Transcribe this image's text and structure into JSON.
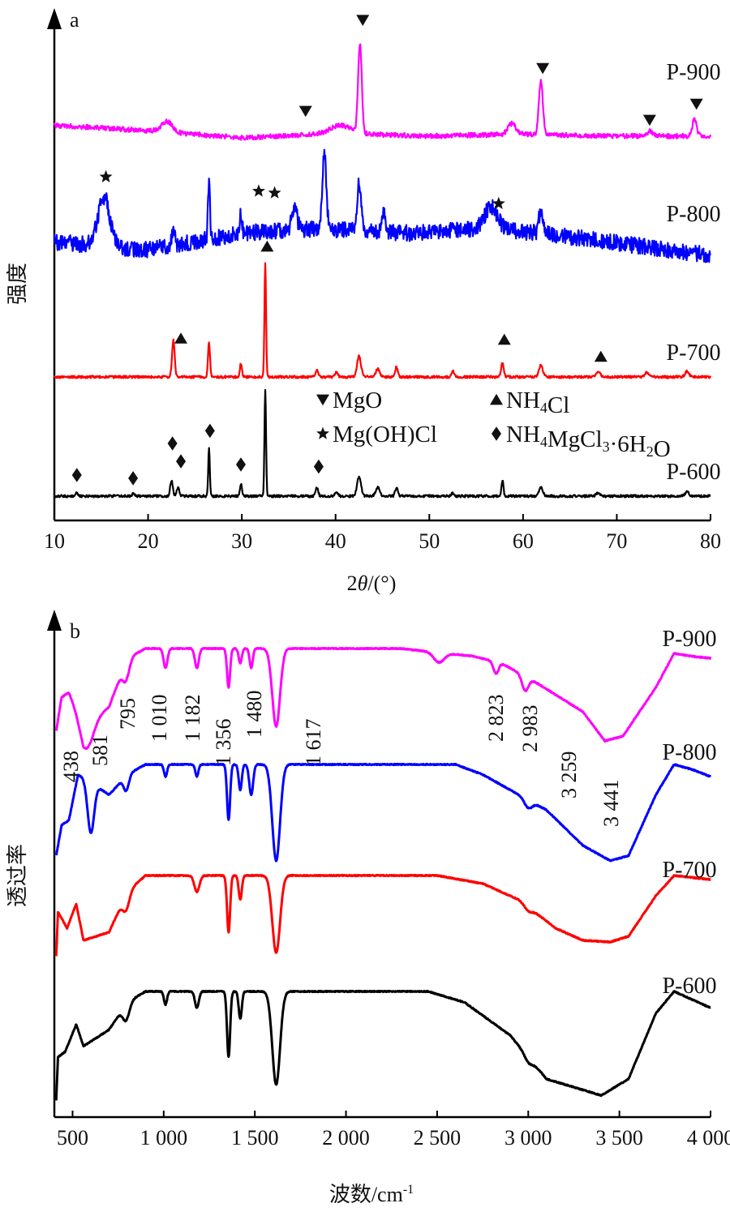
{
  "chart_data": [
    {
      "panel_label": "a",
      "type": "line",
      "xlabel_parts": [
        "2",
        "θ",
        "/(°)"
      ],
      "ylabel": "强度",
      "xlim": [
        10,
        80
      ],
      "xticks": [
        10,
        20,
        30,
        40,
        50,
        60,
        70,
        80
      ],
      "legend": [
        {
          "symbol": "down-triangle",
          "text": "MgO"
        },
        {
          "symbol": "up-triangle",
          "text": "NH4Cl",
          "parts": [
            "NH",
            "4",
            "Cl"
          ]
        },
        {
          "symbol": "star",
          "text": "Mg(OH)Cl"
        },
        {
          "symbol": "diamond",
          "text": "NH4MgCl3·6H2O",
          "parts": [
            "NH",
            "4",
            "MgCl",
            "3",
            "·6H",
            "2",
            "O"
          ]
        }
      ],
      "series": [
        {
          "name": "P-900",
          "color": "#ff00ff",
          "noise": 3,
          "baseline": [
            [
              10,
              0.14
            ],
            [
              20,
              0.08
            ],
            [
              30,
              0.0
            ],
            [
              40,
              0.05
            ],
            [
              50,
              0.02
            ],
            [
              60,
              0.04
            ],
            [
              70,
              0.02
            ],
            [
              80,
              0.02
            ]
          ],
          "peaks": [
            [
              22.0,
              0.12,
              0.8
            ],
            [
              40.5,
              0.09,
              1.5
            ],
            [
              42.6,
              1.0,
              0.28
            ],
            [
              58.8,
              0.12,
              0.6
            ],
            [
              61.9,
              0.6,
              0.3
            ],
            [
              73.5,
              0.05,
              0.4
            ],
            [
              78.3,
              0.2,
              0.3
            ]
          ],
          "markers": [
            {
              "x": 36.8,
              "y": 0.3,
              "symbol": "down-triangle"
            },
            {
              "x": 42.9,
              "y": 1.32,
              "symbol": "down-triangle"
            },
            {
              "x": 62.1,
              "y": 0.78,
              "symbol": "down-triangle"
            },
            {
              "x": 73.5,
              "y": 0.2,
              "symbol": "down-triangle"
            },
            {
              "x": 78.5,
              "y": 0.38,
              "symbol": "down-triangle"
            }
          ]
        },
        {
          "name": "P-800",
          "color": "#0000ff",
          "noise": 10,
          "baseline": [
            [
              10,
              0.15
            ],
            [
              20,
              0.06
            ],
            [
              30,
              0.25
            ],
            [
              38,
              0.3
            ],
            [
              48,
              0.25
            ],
            [
              55,
              0.3
            ],
            [
              62,
              0.25
            ],
            [
              80,
              0.0
            ]
          ],
          "peaks": [
            [
              15.3,
              0.55,
              0.9
            ],
            [
              22.7,
              0.2,
              0.2
            ],
            [
              26.5,
              0.65,
              0.15
            ],
            [
              29.9,
              0.25,
              0.15
            ],
            [
              35.6,
              0.25,
              0.4
            ],
            [
              38.8,
              0.85,
              0.3
            ],
            [
              42.5,
              0.55,
              0.3
            ],
            [
              45.1,
              0.2,
              0.3
            ],
            [
              56.6,
              0.25,
              1.0
            ],
            [
              61.9,
              0.25,
              0.3
            ]
          ],
          "markers": [
            {
              "x": 15.5,
              "y": 0.88,
              "symbol": "star"
            },
            {
              "x": 31.8,
              "y": 0.72,
              "symbol": "star"
            },
            {
              "x": 33.5,
              "y": 0.7,
              "symbol": "star"
            },
            {
              "x": 57.4,
              "y": 0.58,
              "symbol": "star"
            }
          ]
        },
        {
          "name": "P-700",
          "color": "#ff0000",
          "noise": 1.5,
          "baseline": [
            [
              10,
              0.0
            ],
            [
              80,
              0.0
            ]
          ],
          "peaks": [
            [
              22.7,
              0.32,
              0.2
            ],
            [
              26.5,
              0.3,
              0.15
            ],
            [
              29.9,
              0.12,
              0.15
            ],
            [
              32.5,
              1.0,
              0.12
            ],
            [
              38.0,
              0.06,
              0.2
            ],
            [
              40.1,
              0.05,
              0.2
            ],
            [
              42.5,
              0.18,
              0.3
            ],
            [
              44.5,
              0.07,
              0.3
            ],
            [
              46.5,
              0.09,
              0.2
            ],
            [
              52.5,
              0.05,
              0.2
            ],
            [
              57.8,
              0.12,
              0.2
            ],
            [
              61.9,
              0.1,
              0.3
            ],
            [
              68.0,
              0.05,
              0.3
            ],
            [
              73.2,
              0.04,
              0.3
            ],
            [
              77.5,
              0.05,
              0.3
            ]
          ],
          "markers": [
            {
              "x": 23.5,
              "y": 0.34,
              "symbol": "up-triangle"
            },
            {
              "x": 32.7,
              "y": 1.15,
              "symbol": "up-triangle"
            },
            {
              "x": 58.0,
              "y": 0.33,
              "symbol": "up-triangle"
            },
            {
              "x": 68.3,
              "y": 0.18,
              "symbol": "up-triangle"
            }
          ]
        },
        {
          "name": "P-600",
          "color": "#000000",
          "noise": 1.5,
          "baseline": [
            [
              10,
              0.0
            ],
            [
              80,
              0.0
            ]
          ],
          "peaks": [
            [
              12.4,
              0.03,
              0.2
            ],
            [
              18.4,
              0.02,
              0.2
            ],
            [
              22.5,
              0.15,
              0.2
            ],
            [
              23.2,
              0.08,
              0.2
            ],
            [
              26.5,
              0.45,
              0.12
            ],
            [
              29.9,
              0.12,
              0.15
            ],
            [
              32.5,
              1.0,
              0.12
            ],
            [
              38.0,
              0.08,
              0.2
            ],
            [
              40.1,
              0.04,
              0.2
            ],
            [
              42.5,
              0.18,
              0.3
            ],
            [
              44.5,
              0.08,
              0.3
            ],
            [
              46.5,
              0.08,
              0.2
            ],
            [
              52.5,
              0.03,
              0.2
            ],
            [
              57.8,
              0.15,
              0.15
            ],
            [
              61.9,
              0.08,
              0.3
            ],
            [
              68.0,
              0.03,
              0.3
            ],
            [
              77.5,
              0.04,
              0.3
            ]
          ],
          "markers": [
            {
              "x": 12.4,
              "y": 0.2,
              "symbol": "diamond"
            },
            {
              "x": 18.4,
              "y": 0.17,
              "symbol": "diamond"
            },
            {
              "x": 22.6,
              "y": 0.5,
              "symbol": "diamond"
            },
            {
              "x": 23.5,
              "y": 0.33,
              "symbol": "diamond"
            },
            {
              "x": 26.6,
              "y": 0.62,
              "symbol": "diamond"
            },
            {
              "x": 29.9,
              "y": 0.3,
              "symbol": "diamond"
            },
            {
              "x": 38.2,
              "y": 0.28,
              "symbol": "diamond"
            }
          ]
        }
      ]
    },
    {
      "panel_label": "b",
      "type": "line",
      "xlabel": "波数/cm",
      "xlabel_sup": "-1",
      "ylabel": "透过率",
      "xlim": [
        400,
        4000
      ],
      "xticks": [
        500,
        1000,
        1500,
        2000,
        2500,
        3000,
        3500,
        4000
      ],
      "xtick_labels": [
        "500",
        "1 000",
        "1 500",
        "2 000",
        "2 500",
        "3 000",
        "3 500",
        "4 000"
      ],
      "band_labels": [
        {
          "value": 438,
          "text": "438"
        },
        {
          "value": 581,
          "text": "581"
        },
        {
          "value": 795,
          "text": "795"
        },
        {
          "value": 1010,
          "text": "1 010"
        },
        {
          "value": 1182,
          "text": "1 182"
        },
        {
          "value": 1356,
          "text": "1 356"
        },
        {
          "value": 1480,
          "text": "1 480"
        },
        {
          "value": 1617,
          "text": "1 617"
        },
        {
          "value": 2823,
          "text": "2 823"
        },
        {
          "value": 2983,
          "text": "2 983"
        },
        {
          "value": 3259,
          "text": "3 259"
        },
        {
          "value": 3441,
          "text": "3 441"
        }
      ],
      "series": [
        {
          "name": "P-900",
          "color": "#ff00ff",
          "baseline": [
            [
              410,
              0.15
            ],
            [
              440,
              0.5
            ],
            [
              480,
              0.55
            ],
            [
              560,
              0.2
            ],
            [
              700,
              0.4
            ],
            [
              800,
              0.9
            ],
            [
              900,
              1.0
            ],
            [
              2300,
              1.0
            ],
            [
              2700,
              0.92
            ],
            [
              2850,
              0.85
            ],
            [
              3000,
              0.7
            ],
            [
              3300,
              0.35
            ],
            [
              3420,
              0.05
            ],
            [
              3520,
              0.1
            ],
            [
              3700,
              0.6
            ],
            [
              3800,
              0.95
            ],
            [
              3900,
              0.92
            ],
            [
              4000,
              0.9
            ]
          ],
          "bands": [
            [
              580,
              0.25,
              50
            ],
            [
              795,
              0.2,
              25
            ],
            [
              1010,
              0.2,
              15
            ],
            [
              1182,
              0.2,
              15
            ],
            [
              1356,
              0.4,
              12
            ],
            [
              1420,
              0.15,
              12
            ],
            [
              1480,
              0.2,
              12
            ],
            [
              1617,
              0.8,
              30
            ],
            [
              2510,
              0.1,
              40
            ],
            [
              2823,
              0.12,
              20
            ],
            [
              2983,
              0.15,
              25
            ]
          ]
        },
        {
          "name": "P-800",
          "color": "#0000ff",
          "baseline": [
            [
              410,
              0.1
            ],
            [
              440,
              0.4
            ],
            [
              480,
              0.45
            ],
            [
              530,
              0.9
            ],
            [
              580,
              0.85
            ],
            [
              700,
              0.7
            ],
            [
              800,
              0.9
            ],
            [
              900,
              1.0
            ],
            [
              2600,
              1.0
            ],
            [
              2750,
              0.9
            ],
            [
              2900,
              0.75
            ],
            [
              3100,
              0.55
            ],
            [
              3300,
              0.2
            ],
            [
              3450,
              0.05
            ],
            [
              3550,
              0.1
            ],
            [
              3700,
              0.7
            ],
            [
              3800,
              1.0
            ],
            [
              3900,
              0.95
            ],
            [
              4000,
              0.88
            ]
          ],
          "bands": [
            [
              600,
              0.5,
              25
            ],
            [
              795,
              0.15,
              20
            ],
            [
              1010,
              0.12,
              12
            ],
            [
              1182,
              0.12,
              12
            ],
            [
              1356,
              0.55,
              12
            ],
            [
              1420,
              0.25,
              12
            ],
            [
              1480,
              0.3,
              15
            ],
            [
              1617,
              0.95,
              30
            ],
            [
              3000,
              0.08,
              30
            ]
          ]
        },
        {
          "name": "P-700",
          "color": "#ff0000",
          "baseline": [
            [
              410,
              0.0
            ],
            [
              420,
              0.55
            ],
            [
              470,
              0.35
            ],
            [
              520,
              0.65
            ],
            [
              560,
              0.2
            ],
            [
              700,
              0.3
            ],
            [
              800,
              0.8
            ],
            [
              900,
              1.0
            ],
            [
              2500,
              1.0
            ],
            [
              2750,
              0.9
            ],
            [
              2950,
              0.7
            ],
            [
              3150,
              0.35
            ],
            [
              3300,
              0.2
            ],
            [
              3450,
              0.18
            ],
            [
              3550,
              0.25
            ],
            [
              3700,
              0.75
            ],
            [
              3800,
              1.0
            ],
            [
              4000,
              0.95
            ]
          ],
          "bands": [
            [
              795,
              0.2,
              25
            ],
            [
              1182,
              0.2,
              20
            ],
            [
              1356,
              0.7,
              12
            ],
            [
              1420,
              0.3,
              12
            ],
            [
              1617,
              0.95,
              30
            ],
            [
              3000,
              0.05,
              30
            ]
          ]
        },
        {
          "name": "P-600",
          "color": "#000000",
          "baseline": [
            [
              410,
              0.0
            ],
            [
              420,
              0.4
            ],
            [
              460,
              0.45
            ],
            [
              520,
              0.7
            ],
            [
              560,
              0.5
            ],
            [
              700,
              0.65
            ],
            [
              800,
              0.9
            ],
            [
              900,
              1.0
            ],
            [
              2450,
              1.0
            ],
            [
              2650,
              0.9
            ],
            [
              2900,
              0.6
            ],
            [
              3100,
              0.2
            ],
            [
              3400,
              0.05
            ],
            [
              3550,
              0.2
            ],
            [
              3700,
              0.8
            ],
            [
              3800,
              1.0
            ],
            [
              4000,
              0.85
            ]
          ],
          "bands": [
            [
              795,
              0.15,
              25
            ],
            [
              1010,
              0.12,
              12
            ],
            [
              1182,
              0.15,
              15
            ],
            [
              1356,
              0.6,
              12
            ],
            [
              1420,
              0.25,
              12
            ],
            [
              1617,
              0.85,
              30
            ],
            [
              3000,
              0.05,
              30
            ]
          ]
        }
      ]
    }
  ]
}
